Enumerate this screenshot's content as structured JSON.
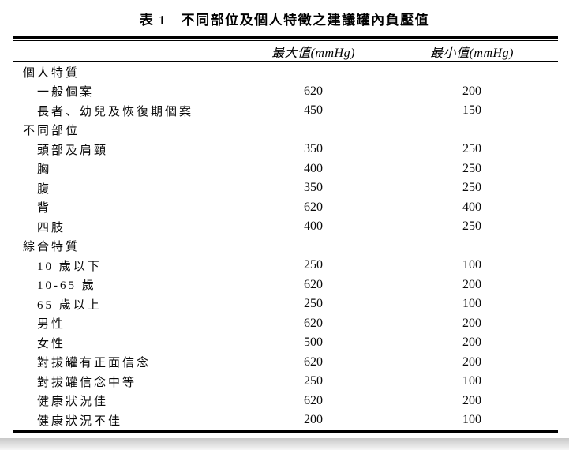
{
  "title": "表 1　不同部位及個人特徵之建議罐內負壓值",
  "table": {
    "columns": [
      "最大值(mmHg)",
      "最小值(mmHg)"
    ],
    "sections": [
      {
        "header": "個人特質",
        "rows": [
          {
            "label": "一般個案",
            "max": "620",
            "min": "200"
          },
          {
            "label": "長者、幼兒及恢復期個案",
            "max": "450",
            "min": "150"
          }
        ]
      },
      {
        "header": "不同部位",
        "rows": [
          {
            "label": "頭部及肩頸",
            "max": "350",
            "min": "250"
          },
          {
            "label": "胸",
            "max": "400",
            "min": "250"
          },
          {
            "label": "腹",
            "max": "350",
            "min": "250"
          },
          {
            "label": "背",
            "max": "620",
            "min": "400"
          },
          {
            "label": "四肢",
            "max": "400",
            "min": "250"
          }
        ]
      },
      {
        "header": "綜合特質",
        "rows": [
          {
            "label": "10 歲以下",
            "max": "250",
            "min": "100"
          },
          {
            "label": "10-65 歲",
            "max": "620",
            "min": "200"
          },
          {
            "label": "65 歲以上",
            "max": "250",
            "min": "100"
          },
          {
            "label": "男性",
            "max": "620",
            "min": "200"
          },
          {
            "label": "女性",
            "max": "500",
            "min": "200"
          },
          {
            "label": "對拔罐有正面信念",
            "max": "620",
            "min": "200"
          },
          {
            "label": "對拔罐信念中等",
            "max": "250",
            "min": "100"
          },
          {
            "label": "健康狀況佳",
            "max": "620",
            "min": "200"
          },
          {
            "label": "健康狀況不佳",
            "max": "200",
            "min": "100"
          }
        ]
      }
    ]
  }
}
